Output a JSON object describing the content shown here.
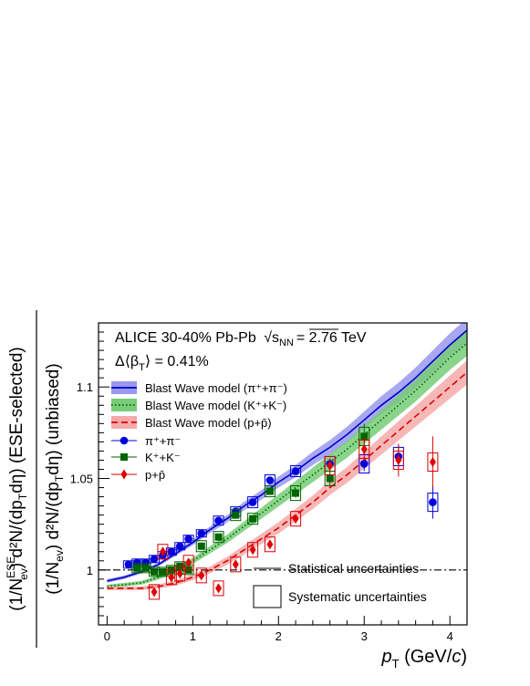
{
  "chart_data": {
    "type": "scatter",
    "annotations": {
      "experiment": "ALICE 30-40% Pb-Pb",
      "sqrt_symbol": "√",
      "energy_var": "s",
      "energy_sub": "NN",
      "energy_value": "= 2.76 TeV",
      "delta_beta": "Δ⟨β",
      "delta_beta_sub": "T",
      "delta_beta_value": "⟩ = 0.41%"
    },
    "xlabel": {
      "var": "p",
      "sub": "T",
      "unit_open": " (GeV/",
      "unit_var": "c",
      "unit_close": ")"
    },
    "ylabel": {
      "top": "(1/N",
      "top_sup": "ESE",
      "top_sub": "ev",
      "top_rest": ") d²N/(dp",
      "top_sub2": "T",
      "top_end": "dη) (ESE-selected)",
      "bottom": "(1/N",
      "bottom_sub": "ev",
      "bottom_rest": ") d²N/(dp",
      "bottom_sub2": "T",
      "bottom_end": "dη) (unbiased)"
    },
    "xlim": [
      -0.1,
      4.2
    ],
    "ylim": [
      0.97,
      1.135
    ],
    "xticks": [
      0,
      1,
      2,
      3,
      4
    ],
    "xtick_labels": [
      "0",
      "1",
      "2",
      "3",
      "4"
    ],
    "yticks": [
      1.0,
      1.05,
      1.1
    ],
    "ytick_labels": [
      "1",
      "1.05",
      "1.1"
    ],
    "reference_line": 1.0,
    "legend": {
      "position": "upper-left",
      "entries": [
        {
          "label": "Blast Wave model (π⁺+π⁻)",
          "kind": "band-line",
          "series": "pion"
        },
        {
          "label": "Blast Wave model (K⁺+K⁻)",
          "kind": "band-dotted",
          "series": "kaon"
        },
        {
          "label": "Blast Wave model (p+p̄)",
          "kind": "band-dashed",
          "series": "proton"
        },
        {
          "label": "π⁺+π⁻",
          "kind": "marker-circle",
          "series": "pion"
        },
        {
          "label": "K⁺+K⁻",
          "kind": "marker-square",
          "series": "kaon"
        },
        {
          "label": "p+p̄",
          "kind": "marker-diamond",
          "series": "proton"
        }
      ],
      "stat_label": "Statistical uncertainties",
      "syst_label": "Systematic uncertainties"
    },
    "series": [
      {
        "name": "pion",
        "color": "#0000dd",
        "marker": "circle",
        "x": [
          0.25,
          0.35,
          0.45,
          0.55,
          0.65,
          0.75,
          0.85,
          0.95,
          1.1,
          1.3,
          1.5,
          1.7,
          1.9,
          2.2,
          2.6,
          3.0,
          3.4,
          3.8
        ],
        "y": [
          1.003,
          1.004,
          1.004,
          1.006,
          1.008,
          1.01,
          1.013,
          1.017,
          1.02,
          1.027,
          1.032,
          1.037,
          1.049,
          1.054,
          1.058,
          1.058,
          1.062,
          1.037
        ],
        "stat": [
          0.0005,
          0.0005,
          0.0005,
          0.0005,
          0.0005,
          0.0005,
          0.0005,
          0.0005,
          0.0006,
          0.0007,
          0.0009,
          0.001,
          0.0012,
          0.0015,
          0.003,
          0.004,
          0.006,
          0.009
        ],
        "syst": [
          0.002,
          0.002,
          0.002,
          0.002,
          0.002,
          0.002,
          0.002,
          0.002,
          0.002,
          0.0025,
          0.0025,
          0.003,
          0.003,
          0.003,
          0.004,
          0.005,
          0.005,
          0.005
        ]
      },
      {
        "name": "kaon",
        "color": "#006400",
        "marker": "square",
        "x": [
          0.35,
          0.45,
          0.55,
          0.65,
          0.75,
          0.85,
          0.95,
          1.1,
          1.3,
          1.5,
          1.7,
          1.9,
          2.2,
          2.6,
          3.0
        ],
        "y": [
          1.001,
          1.001,
          0.999,
          0.999,
          1.0,
          1.002,
          1.0,
          1.013,
          1.018,
          1.03,
          1.028,
          1.043,
          1.042,
          1.05,
          1.073
        ],
        "stat": [
          0.0006,
          0.0006,
          0.0006,
          0.0006,
          0.0006,
          0.0007,
          0.0007,
          0.0008,
          0.001,
          0.0012,
          0.0015,
          0.002,
          0.0025,
          0.004,
          0.007
        ],
        "syst": [
          0.0025,
          0.0025,
          0.0025,
          0.0025,
          0.0025,
          0.0025,
          0.0025,
          0.003,
          0.003,
          0.003,
          0.003,
          0.003,
          0.004,
          0.004,
          0.005
        ]
      },
      {
        "name": "proton",
        "color": "#dd0000",
        "marker": "diamond",
        "x": [
          0.55,
          0.65,
          0.75,
          0.85,
          0.95,
          1.1,
          1.3,
          1.5,
          1.7,
          1.9,
          2.2,
          2.6,
          3.0,
          3.4,
          3.8
        ],
        "y": [
          0.988,
          1.01,
          0.996,
          0.998,
          1.004,
          0.997,
          0.99,
          1.003,
          1.011,
          1.014,
          1.028,
          1.057,
          1.066,
          1.06,
          1.059
        ],
        "stat": [
          0.002,
          0.002,
          0.002,
          0.002,
          0.002,
          0.002,
          0.002,
          0.002,
          0.002,
          0.002,
          0.002,
          0.004,
          0.006,
          0.009,
          0.014
        ],
        "syst": [
          0.004,
          0.004,
          0.004,
          0.004,
          0.004,
          0.004,
          0.004,
          0.004,
          0.004,
          0.004,
          0.004,
          0.005,
          0.005,
          0.005,
          0.005
        ]
      }
    ],
    "models": [
      {
        "name": "pion",
        "style": "solid",
        "line_color": "#0000cc",
        "band_color": "#9999ee",
        "x": [
          0.0,
          0.2,
          0.4,
          0.6,
          0.8,
          1.0,
          1.2,
          1.4,
          1.6,
          1.8,
          2.0,
          2.2,
          2.4,
          2.6,
          2.8,
          3.0,
          3.2,
          3.4,
          3.6,
          3.8,
          4.0,
          4.2
        ],
        "y": [
          0.994,
          0.996,
          0.999,
          1.003,
          1.009,
          1.015,
          1.022,
          1.028,
          1.035,
          1.041,
          1.048,
          1.054,
          1.061,
          1.067,
          1.074,
          1.082,
          1.09,
          1.097,
          1.105,
          1.114,
          1.123,
          1.131
        ],
        "band": [
          0.001,
          0.001,
          0.001,
          0.001,
          0.0012,
          0.0015,
          0.0018,
          0.002,
          0.0023,
          0.0026,
          0.003,
          0.0033,
          0.0036,
          0.004,
          0.0043,
          0.0046,
          0.005,
          0.0053,
          0.0056,
          0.006,
          0.0063,
          0.0066
        ]
      },
      {
        "name": "kaon",
        "style": "dotted",
        "line_color": "#006400",
        "band_color": "#77cc77",
        "x": [
          0.0,
          0.2,
          0.4,
          0.6,
          0.8,
          1.0,
          1.2,
          1.4,
          1.6,
          1.8,
          2.0,
          2.2,
          2.4,
          2.6,
          2.8,
          3.0,
          3.2,
          3.4,
          3.6,
          3.8,
          4.0,
          4.2
        ],
        "y": [
          0.991,
          0.992,
          0.993,
          0.996,
          1.0,
          1.005,
          1.011,
          1.017,
          1.024,
          1.031,
          1.038,
          1.045,
          1.052,
          1.059,
          1.066,
          1.074,
          1.082,
          1.09,
          1.098,
          1.107,
          1.116,
          1.124
        ],
        "band": [
          0.001,
          0.001,
          0.001,
          0.0012,
          0.0014,
          0.0017,
          0.002,
          0.0023,
          0.0026,
          0.003,
          0.0033,
          0.0036,
          0.004,
          0.0043,
          0.0046,
          0.005,
          0.0053,
          0.0056,
          0.006,
          0.0063,
          0.0066,
          0.007
        ]
      },
      {
        "name": "proton",
        "style": "dashed",
        "line_color": "#dd0000",
        "band_color": "#f4aaaa",
        "x": [
          0.0,
          0.2,
          0.4,
          0.6,
          0.8,
          1.0,
          1.2,
          1.4,
          1.6,
          1.8,
          2.0,
          2.2,
          2.4,
          2.6,
          2.8,
          3.0,
          3.2,
          3.4,
          3.6,
          3.8,
          4.0,
          4.2
        ],
        "y": [
          0.99,
          0.99,
          0.99,
          0.991,
          0.993,
          0.996,
          1.0,
          1.005,
          1.011,
          1.017,
          1.023,
          1.03,
          1.037,
          1.045,
          1.052,
          1.06,
          1.068,
          1.076,
          1.084,
          1.092,
          1.1,
          1.108
        ],
        "band": [
          0.001,
          0.001,
          0.001,
          0.0012,
          0.0014,
          0.0016,
          0.0019,
          0.0022,
          0.0025,
          0.0028,
          0.0031,
          0.0034,
          0.0037,
          0.004,
          0.0043,
          0.0046,
          0.005,
          0.0053,
          0.0056,
          0.006,
          0.0063,
          0.0066
        ]
      }
    ]
  }
}
